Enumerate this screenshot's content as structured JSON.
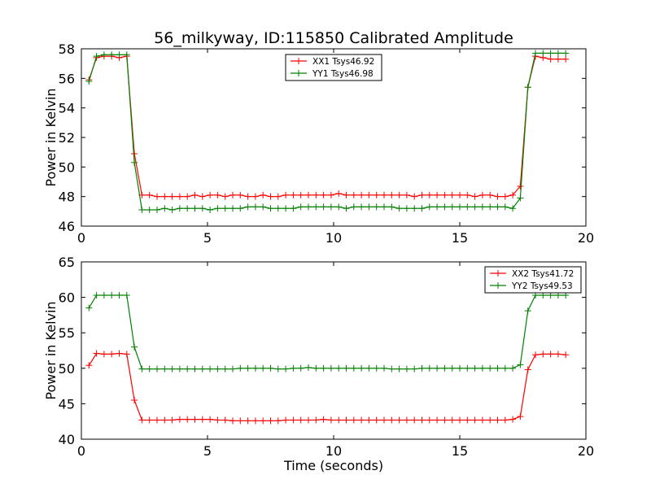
{
  "title": "56_milkyway, ID:115850 Calibrated Amplitude",
  "chart_data": [
    {
      "type": "line",
      "ylabel": "Power in Kelvin",
      "xlabel": "",
      "xlim": [
        0,
        20
      ],
      "ylim": [
        46,
        58
      ],
      "xticks": [
        "0",
        "5",
        "10",
        "15",
        "20"
      ],
      "yticks": [
        "46",
        "48",
        "50",
        "52",
        "54",
        "56",
        "58"
      ],
      "legend_position": "top-center",
      "x": [
        0.3,
        0.6,
        0.9,
        1.2,
        1.5,
        1.8,
        2.1,
        2.4,
        2.7,
        3.0,
        3.3,
        3.6,
        3.9,
        4.2,
        4.5,
        4.8,
        5.1,
        5.4,
        5.7,
        6.0,
        6.3,
        6.6,
        6.9,
        7.2,
        7.5,
        7.8,
        8.1,
        8.4,
        8.7,
        9.0,
        9.3,
        9.6,
        9.9,
        10.2,
        10.5,
        10.8,
        11.1,
        11.4,
        11.7,
        12.0,
        12.3,
        12.6,
        12.9,
        13.2,
        13.5,
        13.8,
        14.1,
        14.4,
        14.7,
        15.0,
        15.3,
        15.6,
        15.9,
        16.2,
        16.5,
        16.8,
        17.1,
        17.4,
        17.7,
        18.0,
        18.3,
        18.6,
        18.9,
        19.2
      ],
      "series": [
        {
          "name": "XX1 Tsys46.92",
          "color": "#ff0000",
          "values": [
            55.9,
            57.4,
            57.5,
            57.5,
            57.4,
            57.5,
            50.9,
            48.1,
            48.1,
            48.0,
            48.0,
            48.0,
            48.0,
            48.0,
            48.1,
            48.0,
            48.1,
            48.1,
            48.0,
            48.1,
            48.1,
            48.0,
            48.0,
            48.1,
            48.0,
            48.0,
            48.1,
            48.1,
            48.1,
            48.1,
            48.1,
            48.1,
            48.1,
            48.2,
            48.1,
            48.1,
            48.1,
            48.1,
            48.1,
            48.1,
            48.1,
            48.1,
            48.1,
            48.0,
            48.1,
            48.1,
            48.1,
            48.1,
            48.1,
            48.1,
            48.1,
            48.0,
            48.1,
            48.1,
            48.0,
            48.0,
            48.1,
            48.7,
            55.4,
            57.5,
            57.4,
            57.3,
            57.3,
            57.3
          ]
        },
        {
          "name": "YY1 Tsys46.98",
          "color": "#008000",
          "values": [
            55.8,
            57.5,
            57.6,
            57.6,
            57.6,
            57.6,
            50.3,
            47.1,
            47.1,
            47.1,
            47.2,
            47.1,
            47.2,
            47.2,
            47.2,
            47.2,
            47.1,
            47.2,
            47.2,
            47.2,
            47.2,
            47.3,
            47.3,
            47.3,
            47.2,
            47.2,
            47.2,
            47.2,
            47.3,
            47.3,
            47.3,
            47.3,
            47.3,
            47.3,
            47.2,
            47.3,
            47.3,
            47.3,
            47.3,
            47.3,
            47.3,
            47.2,
            47.2,
            47.2,
            47.2,
            47.3,
            47.3,
            47.3,
            47.3,
            47.3,
            47.3,
            47.3,
            47.3,
            47.3,
            47.3,
            47.3,
            47.2,
            47.9,
            55.4,
            57.7,
            57.7,
            57.7,
            57.7,
            57.7
          ]
        }
      ]
    },
    {
      "type": "line",
      "ylabel": "Power in Kelvin",
      "xlabel": "Time (seconds)",
      "xlim": [
        0,
        20
      ],
      "ylim": [
        40,
        65
      ],
      "xticks": [
        "0",
        "5",
        "10",
        "15",
        "20"
      ],
      "yticks": [
        "40",
        "45",
        "50",
        "55",
        "60",
        "65"
      ],
      "legend_position": "top-right",
      "x": [
        0.3,
        0.6,
        0.9,
        1.2,
        1.5,
        1.8,
        2.1,
        2.4,
        2.7,
        3.0,
        3.3,
        3.6,
        3.9,
        4.2,
        4.5,
        4.8,
        5.1,
        5.4,
        5.7,
        6.0,
        6.3,
        6.6,
        6.9,
        7.2,
        7.5,
        7.8,
        8.1,
        8.4,
        8.7,
        9.0,
        9.3,
        9.6,
        9.9,
        10.2,
        10.5,
        10.8,
        11.1,
        11.4,
        11.7,
        12.0,
        12.3,
        12.6,
        12.9,
        13.2,
        13.5,
        13.8,
        14.1,
        14.4,
        14.7,
        15.0,
        15.3,
        15.6,
        15.9,
        16.2,
        16.5,
        16.8,
        17.1,
        17.4,
        17.7,
        18.0,
        18.3,
        18.6,
        18.9,
        19.2
      ],
      "series": [
        {
          "name": "XX2 Tsys41.72",
          "color": "#ff0000",
          "values": [
            50.4,
            52.1,
            52.0,
            52.0,
            52.1,
            52.0,
            45.5,
            42.7,
            42.7,
            42.7,
            42.7,
            42.7,
            42.8,
            42.8,
            42.8,
            42.8,
            42.8,
            42.7,
            42.7,
            42.6,
            42.6,
            42.6,
            42.6,
            42.6,
            42.6,
            42.6,
            42.7,
            42.7,
            42.7,
            42.7,
            42.7,
            42.8,
            42.7,
            42.7,
            42.7,
            42.7,
            42.7,
            42.7,
            42.7,
            42.7,
            42.7,
            42.7,
            42.7,
            42.7,
            42.7,
            42.7,
            42.7,
            42.7,
            42.7,
            42.7,
            42.7,
            42.7,
            42.7,
            42.7,
            42.7,
            42.7,
            42.8,
            43.2,
            49.8,
            51.9,
            52.0,
            52.0,
            52.0,
            51.9
          ]
        },
        {
          "name": "YY2 Tsys49.53",
          "color": "#008000",
          "values": [
            58.5,
            60.3,
            60.3,
            60.3,
            60.3,
            60.3,
            53.0,
            49.9,
            49.9,
            49.9,
            49.9,
            49.9,
            49.9,
            49.9,
            49.9,
            49.9,
            49.9,
            49.9,
            49.9,
            49.9,
            50.0,
            50.0,
            50.0,
            50.0,
            50.0,
            49.9,
            49.9,
            50.0,
            50.0,
            50.1,
            50.0,
            50.0,
            50.0,
            50.0,
            50.0,
            50.0,
            50.0,
            50.0,
            50.0,
            50.0,
            49.9,
            49.9,
            49.9,
            49.9,
            50.0,
            50.0,
            50.0,
            50.0,
            50.0,
            50.0,
            50.0,
            50.0,
            50.0,
            50.0,
            50.0,
            50.0,
            50.0,
            50.5,
            58.1,
            60.3,
            60.3,
            60.3,
            60.3,
            60.3
          ]
        }
      ]
    }
  ]
}
